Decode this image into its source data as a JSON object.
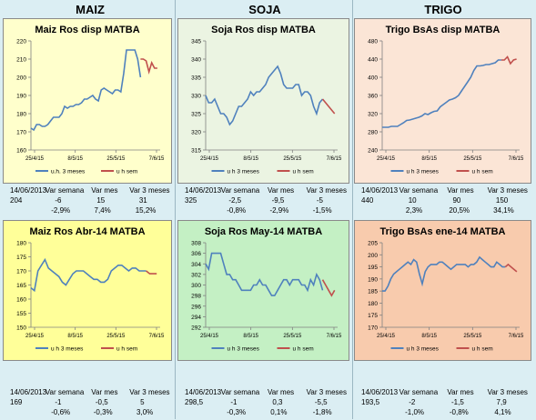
{
  "headers": [
    "MAIZ",
    "SOJA",
    "TRIGO"
  ],
  "stats_labels": {
    "date": "14/06/2013",
    "c1": "Var semana",
    "c2": "Var mes",
    "c3": "Var 3 meses"
  },
  "legend": {
    "s1": "u.h. 3 meses",
    "s1b": "u h 3 meses",
    "s2": "u h sem"
  },
  "colors": {
    "line": "#4f81bd",
    "recent": "#c0504d"
  },
  "chart_data": [
    {
      "type": "line",
      "title": "Maiz Ros disp MATBA",
      "bg": "#ffffcc",
      "ylim": [
        160,
        220
      ],
      "yticks": [
        160,
        170,
        180,
        190,
        200,
        210,
        220
      ],
      "xlabels": [
        "25/4/15",
        "8/5/15",
        "25/5/15",
        "7/6/15"
      ],
      "legend": "u.h. 3 meses",
      "series": [
        {
          "name": "u.h. 3 meses",
          "values": [
            172,
            171,
            174,
            174,
            173,
            173,
            174,
            176,
            178,
            178,
            178,
            180,
            184,
            183,
            184,
            184,
            185,
            185,
            186,
            188,
            188,
            189,
            190,
            188,
            187,
            193,
            194,
            193,
            192,
            191,
            193,
            193,
            192,
            202,
            215,
            215,
            215,
            215,
            210,
            200
          ]
        },
        {
          "name": "u h sem",
          "values": [
            210,
            210,
            209,
            203,
            208,
            205,
            205
          ]
        }
      ],
      "stats": {
        "value": "204",
        "c1": "-6",
        "c2": "15",
        "c3": "31",
        "p1": "-2,9%",
        "p2": "7,4%",
        "p3": "15,2%"
      }
    },
    {
      "type": "line",
      "title": "Soja Ros disp MATBA",
      "bg": "#ebf4e2",
      "ylim": [
        315,
        345
      ],
      "yticks": [
        315,
        320,
        325,
        330,
        335,
        340,
        345
      ],
      "xlabels": [
        "25/4/15",
        "8/5/15",
        "25/5/15",
        "7/6/15"
      ],
      "legend": "u h 3 meses",
      "series": [
        {
          "name": "u h 3 meses",
          "values": [
            330,
            328,
            328,
            329,
            327,
            325,
            325,
            324,
            322,
            323,
            325,
            327,
            327,
            328,
            329,
            331,
            330,
            331,
            331,
            332,
            333,
            335,
            336,
            337,
            338,
            336,
            333,
            332,
            332,
            332,
            333,
            333,
            330,
            331,
            331,
            330,
            327,
            325,
            328,
            329
          ]
        },
        {
          "name": "u h sem",
          "values": [
            329,
            328,
            327,
            326,
            325
          ]
        }
      ],
      "stats": {
        "value": "325",
        "c1": "-2,5",
        "c2": "-9,5",
        "c3": "-5",
        "p1": "-0,8%",
        "p2": "-2,9%",
        "p3": "-1,5%"
      }
    },
    {
      "type": "line",
      "title": "Trigo BsAs disp MATBA",
      "bg": "#fbe5d6",
      "ylim": [
        240,
        480
      ],
      "yticks": [
        240,
        280,
        320,
        360,
        400,
        440,
        480
      ],
      "xlabels": [
        "25/4/15",
        "8/5/15",
        "25/5/15",
        "7/6/15"
      ],
      "legend": "u h 3 meses",
      "series": [
        {
          "name": "u h 3 meses",
          "values": [
            290,
            290,
            290,
            292,
            292,
            292,
            296,
            300,
            305,
            306,
            308,
            310,
            312,
            315,
            320,
            318,
            322,
            325,
            326,
            335,
            340,
            345,
            350,
            352,
            355,
            360,
            370,
            380,
            390,
            400,
            415,
            425,
            425,
            426,
            428,
            428,
            430,
            432,
            438,
            438
          ]
        },
        {
          "name": "u h sem",
          "values": [
            438,
            438,
            445,
            430,
            438,
            440
          ]
        }
      ],
      "stats": {
        "value": "440",
        "c1": "10",
        "c2": "90",
        "c3": "150",
        "p1": "2,3%",
        "p2": "20,5%",
        "p3": "34,1%"
      }
    },
    {
      "type": "line",
      "title": "Maiz Ros Abr-14 MATBA",
      "bg": "#ffff99",
      "ylim": [
        150,
        180
      ],
      "yticks": [
        150,
        155,
        160,
        165,
        170,
        175,
        180
      ],
      "xlabels": [
        "25/4/15",
        "8/5/15",
        "25/5/15",
        "7/6/15"
      ],
      "legend": "u h 3 meses",
      "series": [
        {
          "name": "u h 3 meses",
          "values": [
            164,
            163,
            170,
            172,
            174,
            171,
            170,
            169,
            168,
            166,
            165,
            167,
            169,
            170,
            170,
            170,
            169,
            168,
            167,
            167,
            166,
            166,
            167,
            170,
            171,
            172,
            172,
            171,
            170,
            171,
            171,
            170,
            170,
            170
          ]
        },
        {
          "name": "u h sem",
          "values": [
            170,
            169,
            169,
            169
          ]
        }
      ],
      "stats": {
        "value": "169",
        "c1": "-1",
        "c2": "-0,5",
        "c3": "5",
        "p1": "-0,6%",
        "p2": "-0,3%",
        "p3": "3,0%"
      }
    },
    {
      "type": "line",
      "title": "Soja Ros May-14 MATBA",
      "bg": "#c4f0c4",
      "ylim": [
        292,
        308
      ],
      "yticks": [
        292,
        294,
        296,
        298,
        300,
        302,
        304,
        306,
        308
      ],
      "xlabels": [
        "25/4/15",
        "8/5/15",
        "25/5/15",
        "7/6/15"
      ],
      "legend": "u h 3 meses",
      "series": [
        {
          "name": "u h 3 meses",
          "values": [
            304,
            303,
            306,
            306,
            306,
            306,
            304,
            302,
            302,
            301,
            301,
            300,
            299,
            299,
            299,
            299,
            300,
            300,
            301,
            300,
            300,
            299,
            298,
            298,
            299,
            300,
            301,
            301,
            300,
            301,
            301,
            301,
            300,
            300,
            299,
            301,
            300,
            302,
            301,
            299
          ]
        },
        {
          "name": "u h sem",
          "values": [
            301,
            300,
            299,
            298,
            299
          ]
        }
      ],
      "stats": {
        "value": "298,5",
        "c1": "-1",
        "c2": "0,3",
        "c3": "-5,5",
        "p1": "-0,3%",
        "p2": "0,1%",
        "p3": "-1,8%"
      }
    },
    {
      "type": "line",
      "title": "Trigo BsAs ene-14 MATBA",
      "bg": "#f8cbad",
      "ylim": [
        170,
        205
      ],
      "yticks": [
        170,
        175,
        180,
        185,
        190,
        195,
        200,
        205
      ],
      "xlabels": [
        "25/4/15",
        "8/5/15",
        "25/5/15",
        "7/6/15"
      ],
      "legend": "u h 3 meses",
      "series": [
        {
          "name": "u h 3 meses",
          "values": [
            185,
            185,
            187,
            190,
            192,
            193,
            194,
            195,
            196,
            197,
            196,
            198,
            197,
            192,
            188,
            193,
            195,
            196,
            196,
            196,
            197,
            197,
            196,
            195,
            194,
            195,
            196,
            196,
            196,
            196,
            195,
            196,
            196,
            197,
            199,
            198,
            197,
            196,
            195,
            195,
            197,
            196,
            195,
            195
          ]
        },
        {
          "name": "u h sem",
          "values": [
            195,
            196,
            195,
            194,
            193
          ]
        }
      ],
      "stats": {
        "value": "193,5",
        "c1": "-2",
        "c2": "-1,5",
        "c3": "7,9",
        "p1": "-1,0%",
        "p2": "-0,8%",
        "p3": "4,1%"
      }
    }
  ]
}
